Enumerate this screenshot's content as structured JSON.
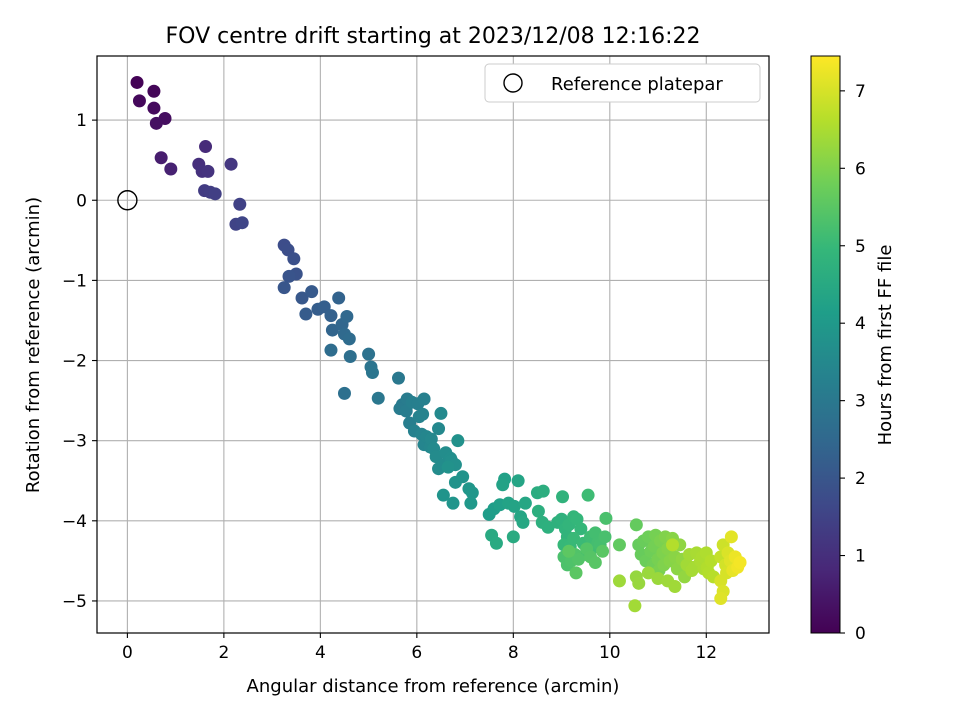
{
  "chart_data": {
    "type": "scatter",
    "title": "FOV centre drift starting at 2023/12/08 12:16:22",
    "xlabel": "Angular distance from reference (arcmin)",
    "ylabel": "Rotation from reference (arcmin)",
    "xlim": [
      -0.63,
      13.3
    ],
    "ylim": [
      -5.4,
      1.8
    ],
    "xticks": [
      0,
      2,
      4,
      6,
      8,
      10,
      12
    ],
    "yticks": [
      -5,
      -4,
      -3,
      -2,
      -1,
      0,
      1
    ],
    "grid": true,
    "legend": {
      "placement": "top-right",
      "entries": [
        "Reference platepar"
      ]
    },
    "reference_point": {
      "x": 0,
      "y": 0,
      "label": "Reference platepar"
    },
    "colorbar": {
      "label": "Hours from first FF file",
      "range": [
        0,
        7.45
      ],
      "ticks": [
        0,
        1,
        2,
        3,
        4,
        5,
        6,
        7
      ],
      "colormap": "viridis"
    },
    "series": [
      {
        "fields": [
          "x",
          "y",
          "hours"
        ],
        "points": [
          [
            0.2,
            1.47,
            0.05
          ],
          [
            0.55,
            1.36,
            0.1
          ],
          [
            0.25,
            1.24,
            0.15
          ],
          [
            0.55,
            1.15,
            0.2
          ],
          [
            0.78,
            1.02,
            0.28
          ],
          [
            0.6,
            0.96,
            0.3
          ],
          [
            0.7,
            0.53,
            0.6
          ],
          [
            0.9,
            0.39,
            0.7
          ],
          [
            1.62,
            0.67,
            0.9
          ],
          [
            1.48,
            0.45,
            1.0
          ],
          [
            1.55,
            0.36,
            1.05
          ],
          [
            1.67,
            0.36,
            1.1
          ],
          [
            2.15,
            0.45,
            1.2
          ],
          [
            1.6,
            0.12,
            1.3
          ],
          [
            1.72,
            0.1,
            1.35
          ],
          [
            1.82,
            0.08,
            1.4
          ],
          [
            2.33,
            -0.05,
            1.45
          ],
          [
            2.25,
            -0.3,
            1.5
          ],
          [
            2.38,
            -0.28,
            1.55
          ],
          [
            3.25,
            -0.56,
            1.75
          ],
          [
            3.33,
            -0.62,
            1.8
          ],
          [
            3.45,
            -0.73,
            1.85
          ],
          [
            3.5,
            -0.92,
            1.9
          ],
          [
            3.35,
            -0.95,
            1.95
          ],
          [
            3.25,
            -1.09,
            2.0
          ],
          [
            3.62,
            -1.22,
            2.05
          ],
          [
            3.82,
            -1.14,
            2.1
          ],
          [
            3.7,
            -1.42,
            2.15
          ],
          [
            3.95,
            -1.36,
            2.2
          ],
          [
            4.08,
            -1.33,
            2.25
          ],
          [
            4.22,
            -1.44,
            2.3
          ],
          [
            4.38,
            -1.22,
            2.35
          ],
          [
            4.25,
            -1.62,
            2.4
          ],
          [
            4.45,
            -1.55,
            2.45
          ],
          [
            4.55,
            -1.45,
            2.5
          ],
          [
            4.5,
            -1.67,
            2.55
          ],
          [
            4.6,
            -1.73,
            2.6
          ],
          [
            4.22,
            -1.87,
            2.65
          ],
          [
            4.62,
            -1.95,
            2.7
          ],
          [
            4.5,
            -2.41,
            2.75
          ],
          [
            5.0,
            -1.92,
            2.8
          ],
          [
            5.05,
            -2.08,
            2.85
          ],
          [
            5.08,
            -2.15,
            2.9
          ],
          [
            5.2,
            -2.47,
            2.95
          ],
          [
            5.62,
            -2.22,
            3.0
          ],
          [
            5.7,
            -2.55,
            3.05
          ],
          [
            5.65,
            -2.6,
            3.1
          ],
          [
            5.8,
            -2.48,
            3.12
          ],
          [
            5.78,
            -2.63,
            3.15
          ],
          [
            5.85,
            -2.78,
            3.18
          ],
          [
            5.9,
            -2.52,
            3.2
          ],
          [
            6.02,
            -2.54,
            3.22
          ],
          [
            6.15,
            -2.48,
            3.25
          ],
          [
            5.95,
            -2.88,
            3.28
          ],
          [
            6.05,
            -2.7,
            3.3
          ],
          [
            6.12,
            -2.67,
            3.33
          ],
          [
            6.1,
            -2.92,
            3.36
          ],
          [
            6.15,
            -3.05,
            3.39
          ],
          [
            6.2,
            -2.95,
            3.42
          ],
          [
            6.28,
            -3.08,
            3.45
          ],
          [
            6.3,
            -2.98,
            3.48
          ],
          [
            6.45,
            -2.85,
            3.5
          ],
          [
            6.5,
            -2.66,
            3.52
          ],
          [
            6.35,
            -3.1,
            3.55
          ],
          [
            6.4,
            -3.2,
            3.58
          ],
          [
            6.45,
            -3.35,
            3.6
          ],
          [
            6.55,
            -3.3,
            3.62
          ],
          [
            6.6,
            -3.15,
            3.65
          ],
          [
            6.7,
            -3.22,
            3.68
          ],
          [
            6.72,
            -3.25,
            3.7
          ],
          [
            6.8,
            -3.3,
            3.72
          ],
          [
            6.85,
            -3.0,
            3.75
          ],
          [
            6.65,
            -3.33,
            3.77
          ],
          [
            6.8,
            -3.52,
            3.8
          ],
          [
            6.95,
            -3.45,
            3.82
          ],
          [
            6.55,
            -3.68,
            3.85
          ],
          [
            6.75,
            -3.78,
            3.87
          ],
          [
            7.08,
            -3.6,
            3.9
          ],
          [
            7.15,
            -3.65,
            3.93
          ],
          [
            7.12,
            -3.78,
            3.95
          ],
          [
            7.5,
            -3.92,
            4.1
          ],
          [
            7.6,
            -3.85,
            4.15
          ],
          [
            7.72,
            -3.8,
            4.2
          ],
          [
            7.82,
            -3.48,
            4.25
          ],
          [
            7.78,
            -3.55,
            4.28
          ],
          [
            7.9,
            -3.78,
            4.3
          ],
          [
            8.02,
            -3.82,
            4.32
          ],
          [
            8.1,
            -3.5,
            4.35
          ],
          [
            8.15,
            -3.95,
            4.38
          ],
          [
            8.25,
            -3.78,
            4.4
          ],
          [
            8.2,
            -4.02,
            4.45
          ],
          [
            7.55,
            -4.18,
            4.5
          ],
          [
            7.65,
            -4.28,
            4.52
          ],
          [
            8.0,
            -4.2,
            4.55
          ],
          [
            8.5,
            -3.65,
            4.6
          ],
          [
            8.62,
            -3.63,
            4.65
          ],
          [
            8.52,
            -3.88,
            4.68
          ],
          [
            8.6,
            -4.02,
            4.7
          ],
          [
            8.72,
            -4.08,
            4.72
          ],
          [
            8.92,
            -4.02,
            4.75
          ],
          [
            9.0,
            -3.98,
            4.78
          ],
          [
            9.02,
            -3.7,
            4.8
          ],
          [
            9.08,
            -4.1,
            4.82
          ],
          [
            9.12,
            -4.2,
            4.85
          ],
          [
            9.15,
            -4.05,
            4.88
          ],
          [
            9.25,
            -3.95,
            4.9
          ],
          [
            9.32,
            -3.98,
            4.92
          ],
          [
            9.4,
            -4.1,
            4.95
          ],
          [
            9.05,
            -4.3,
            4.98
          ],
          [
            9.18,
            -4.32,
            5.0
          ],
          [
            9.25,
            -4.22,
            5.02
          ],
          [
            9.45,
            -4.28,
            5.05
          ],
          [
            9.5,
            -4.42,
            5.08
          ],
          [
            9.55,
            -3.68,
            5.1
          ],
          [
            9.6,
            -4.2,
            5.12
          ],
          [
            9.62,
            -4.35,
            5.15
          ],
          [
            9.7,
            -4.15,
            5.18
          ],
          [
            9.75,
            -4.28,
            5.2
          ],
          [
            9.8,
            -4.3,
            5.22
          ],
          [
            9.9,
            -4.2,
            5.25
          ],
          [
            9.92,
            -3.97,
            5.28
          ],
          [
            9.05,
            -4.45,
            5.3
          ],
          [
            9.12,
            -4.55,
            5.32
          ],
          [
            9.2,
            -4.5,
            5.35
          ],
          [
            9.28,
            -4.42,
            5.38
          ],
          [
            9.35,
            -4.48,
            5.4
          ],
          [
            9.52,
            -4.35,
            5.42
          ],
          [
            9.6,
            -4.45,
            5.45
          ],
          [
            9.7,
            -4.52,
            5.48
          ],
          [
            9.85,
            -4.38,
            5.5
          ],
          [
            9.3,
            -4.65,
            5.52
          ],
          [
            9.15,
            -4.38,
            5.55
          ],
          [
            10.2,
            -4.3,
            5.6
          ],
          [
            10.55,
            -4.05,
            5.65
          ],
          [
            10.6,
            -4.3,
            5.68
          ],
          [
            10.65,
            -4.42,
            5.7
          ],
          [
            10.7,
            -4.25,
            5.72
          ],
          [
            10.75,
            -4.5,
            5.75
          ],
          [
            10.8,
            -4.2,
            5.78
          ],
          [
            10.85,
            -4.38,
            5.8
          ],
          [
            10.9,
            -4.55,
            5.82
          ],
          [
            10.92,
            -4.32,
            5.85
          ],
          [
            10.95,
            -4.18,
            5.88
          ],
          [
            11.0,
            -4.48,
            5.9
          ],
          [
            11.02,
            -4.62,
            5.92
          ],
          [
            11.05,
            -4.25,
            5.95
          ],
          [
            11.1,
            -4.4,
            5.98
          ],
          [
            11.12,
            -4.55,
            6.0
          ],
          [
            11.15,
            -4.2,
            6.02
          ],
          [
            11.2,
            -4.35,
            6.05
          ],
          [
            11.25,
            -4.5,
            6.08
          ],
          [
            11.3,
            -4.22,
            6.1
          ],
          [
            11.35,
            -4.45,
            6.12
          ],
          [
            11.4,
            -4.6,
            6.15
          ],
          [
            11.45,
            -4.3,
            6.18
          ],
          [
            11.5,
            -4.48,
            6.2
          ],
          [
            11.55,
            -4.7,
            6.22
          ],
          [
            10.55,
            -4.7,
            6.25
          ],
          [
            10.6,
            -4.78,
            6.28
          ],
          [
            10.8,
            -4.65,
            6.3
          ],
          [
            11.0,
            -4.72,
            6.32
          ],
          [
            11.2,
            -4.75,
            6.35
          ],
          [
            11.35,
            -4.82,
            6.38
          ],
          [
            11.6,
            -4.55,
            6.4
          ],
          [
            11.65,
            -4.42,
            6.42
          ],
          [
            11.7,
            -4.62,
            6.45
          ],
          [
            11.8,
            -4.4,
            6.48
          ],
          [
            11.88,
            -4.5,
            6.5
          ],
          [
            11.92,
            -4.45,
            6.52
          ],
          [
            12.0,
            -4.4,
            6.55
          ],
          [
            12.02,
            -4.58,
            6.58
          ],
          [
            12.05,
            -4.65,
            6.6
          ],
          [
            12.1,
            -4.5,
            6.62
          ],
          [
            12.15,
            -4.7,
            6.65
          ],
          [
            10.52,
            -5.06,
            6.4
          ],
          [
            10.2,
            -4.75,
            6.35
          ],
          [
            11.3,
            -4.3,
            6.6
          ],
          [
            12.3,
            -4.45,
            6.8
          ],
          [
            12.35,
            -4.3,
            6.9
          ],
          [
            12.4,
            -4.55,
            6.95
          ],
          [
            12.42,
            -4.65,
            7.0
          ],
          [
            12.45,
            -4.4,
            7.05
          ],
          [
            12.5,
            -4.5,
            7.1
          ],
          [
            12.52,
            -4.2,
            7.15
          ],
          [
            12.55,
            -4.62,
            7.2
          ],
          [
            12.6,
            -4.45,
            7.25
          ],
          [
            12.65,
            -4.58,
            7.3
          ],
          [
            12.7,
            -4.52,
            7.35
          ],
          [
            12.3,
            -4.75,
            7.0
          ],
          [
            12.35,
            -4.88,
            7.05
          ],
          [
            12.3,
            -4.97,
            7.1
          ],
          [
            11.75,
            -4.58,
            6.45
          ],
          [
            11.95,
            -4.6,
            6.5
          ]
        ]
      }
    ]
  }
}
